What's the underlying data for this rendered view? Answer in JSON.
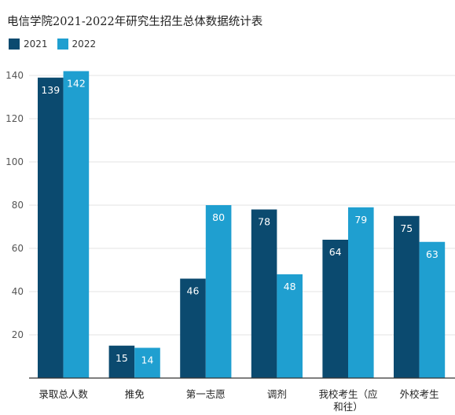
{
  "chart_data": {
    "type": "bar",
    "title": "电信学院2021-2022年研究生招生总体数据统计表",
    "categories": [
      "录取总人数",
      "推免",
      "第一志愿",
      "调剂",
      "我校考生（应和往）",
      "外校考生"
    ],
    "category_lines": [
      [
        "录取总人数"
      ],
      [
        "推免"
      ],
      [
        "第一志愿"
      ],
      [
        "调剂"
      ],
      [
        "我校考生（应",
        "和往）"
      ],
      [
        "外校考生"
      ]
    ],
    "series": [
      {
        "name": "2021",
        "color": "#0b4a6f",
        "values": [
          139,
          15,
          46,
          78,
          64,
          75
        ]
      },
      {
        "name": "2022",
        "color": "#1f9fd0",
        "values": [
          142,
          14,
          80,
          48,
          79,
          63
        ]
      }
    ],
    "yticks": [
      20,
      40,
      60,
      80,
      100,
      120,
      140
    ],
    "ylim": [
      0,
      147
    ],
    "grid": true,
    "legend_position": "top-left",
    "xlabel": "",
    "ylabel": ""
  }
}
